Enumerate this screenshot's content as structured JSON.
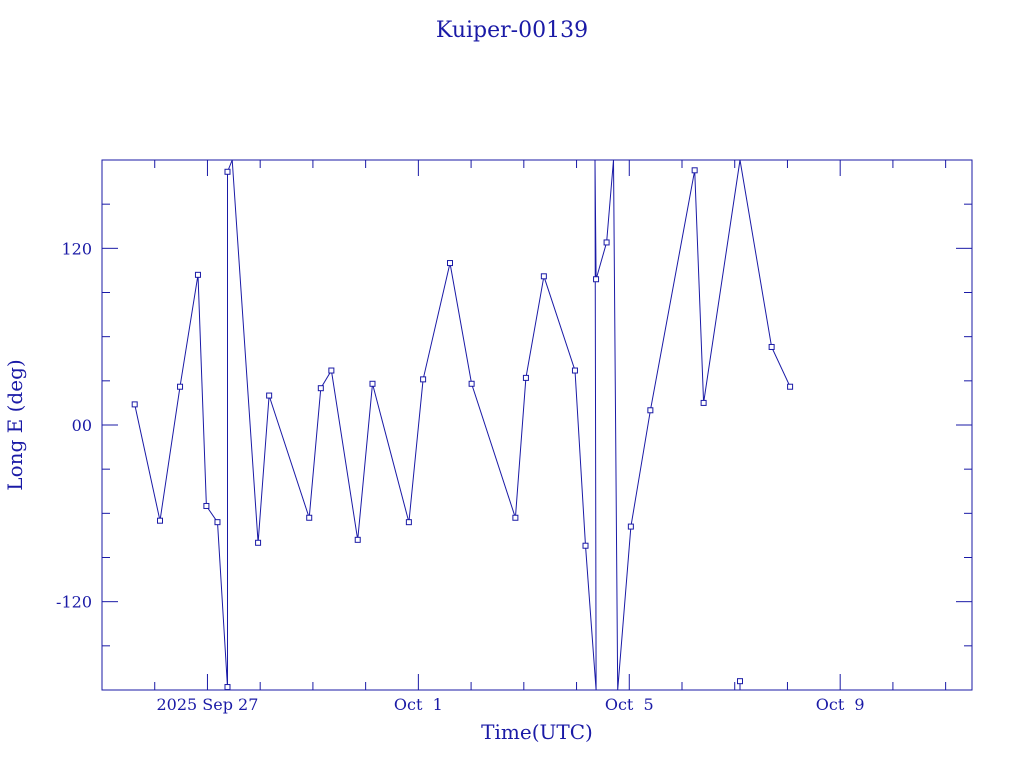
{
  "chart_data": {
    "type": "line",
    "title": "Kuiper-00139",
    "xlabel": "Time(UTC)",
    "ylabel": "Long E (deg)",
    "color": "#1a1aa6",
    "xlim": [
      -2.0,
      14.5
    ],
    "ylim": [
      -180,
      180
    ],
    "x_ticks": [
      {
        "x": 0,
        "label": "2025 Sep 27"
      },
      {
        "x": 4,
        "label": "Oct  1"
      },
      {
        "x": 8,
        "label": "Oct  5"
      },
      {
        "x": 12,
        "label": "Oct  9"
      }
    ],
    "y_ticks": [
      {
        "y": -120,
        "label": "-120"
      },
      {
        "y": 0,
        "label": "00"
      },
      {
        "y": 120,
        "label": "120"
      }
    ],
    "grid": false,
    "markers": "square",
    "series": [
      {
        "points": [
          [
            -1.38,
            14
          ],
          [
            -0.9,
            -65
          ],
          [
            -0.52,
            26
          ],
          [
            -0.18,
            102
          ],
          [
            -0.02,
            -55
          ],
          [
            0.19,
            -66
          ],
          [
            0.38,
            -178
          ],
          [
            0.38,
            172
          ],
          [
            0.47,
            180
          ],
          [
            0.96,
            -80
          ],
          [
            1.17,
            20
          ],
          [
            1.93,
            -63
          ],
          [
            2.15,
            25
          ],
          [
            2.35,
            37
          ],
          [
            2.85,
            -78
          ],
          [
            3.13,
            28
          ],
          [
            3.82,
            -66
          ],
          [
            4.09,
            31
          ],
          [
            4.6,
            110
          ],
          [
            5.01,
            28
          ],
          [
            5.84,
            -63
          ],
          [
            6.04,
            32
          ],
          [
            6.38,
            101
          ],
          [
            6.97,
            37
          ],
          [
            7.17,
            -82
          ],
          [
            7.37,
            -180
          ],
          [
            7.35,
            180
          ],
          [
            7.37,
            99
          ],
          [
            7.57,
            124
          ],
          [
            7.7,
            180
          ],
          [
            7.78,
            -180
          ],
          [
            8.03,
            -69
          ],
          [
            8.4,
            10
          ],
          [
            9.24,
            173
          ],
          [
            9.41,
            15
          ],
          [
            10.1,
            180
          ],
          [
            10.7,
            53
          ],
          [
            11.05,
            26
          ]
        ]
      },
      {
        "points": [
          [
            10.1,
            -174
          ],
          [
            10.1,
            -180
          ]
        ]
      }
    ]
  }
}
